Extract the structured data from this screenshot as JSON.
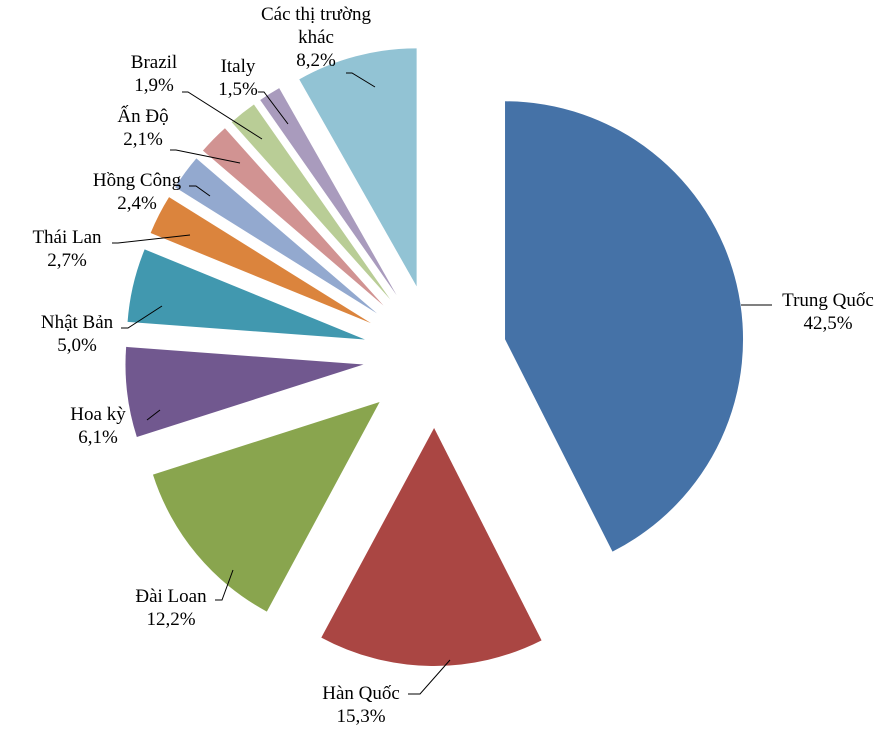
{
  "chart_data": {
    "type": "pie",
    "title": "",
    "legend": "none",
    "exploded": true,
    "slices": [
      {
        "label": "Trung Quốc",
        "value": 42.5,
        "value_label": "42,5%",
        "color": "#4572A7"
      },
      {
        "label": "Hàn Quốc",
        "value": 15.3,
        "value_label": "15,3%",
        "color": "#AA4643"
      },
      {
        "label": "Đài Loan",
        "value": 12.2,
        "value_label": "12,2%",
        "color": "#89A54E"
      },
      {
        "label": "Hoa kỳ",
        "value": 6.1,
        "value_label": "6,1%",
        "color": "#71588F"
      },
      {
        "label": "Nhật Bản",
        "value": 5.0,
        "value_label": "5,0%",
        "color": "#4198AF"
      },
      {
        "label": "Thái Lan",
        "value": 2.7,
        "value_label": "2,7%",
        "color": "#DB843D"
      },
      {
        "label": "Hồng Công",
        "value": 2.4,
        "value_label": "2,4%",
        "color": "#93A9CF"
      },
      {
        "label": "Ấn Độ",
        "value": 2.1,
        "value_label": "2,1%",
        "color": "#D19392"
      },
      {
        "label": "Brazil",
        "value": 1.9,
        "value_label": "1,9%",
        "color": "#B9CD96"
      },
      {
        "label": "Italy",
        "value": 1.5,
        "value_label": "1,5%",
        "color": "#A99BBD"
      },
      {
        "label": "Các thị trường khác",
        "value": 8.2,
        "value_label": "8,2%",
        "color": "#92C3D4"
      }
    ]
  }
}
